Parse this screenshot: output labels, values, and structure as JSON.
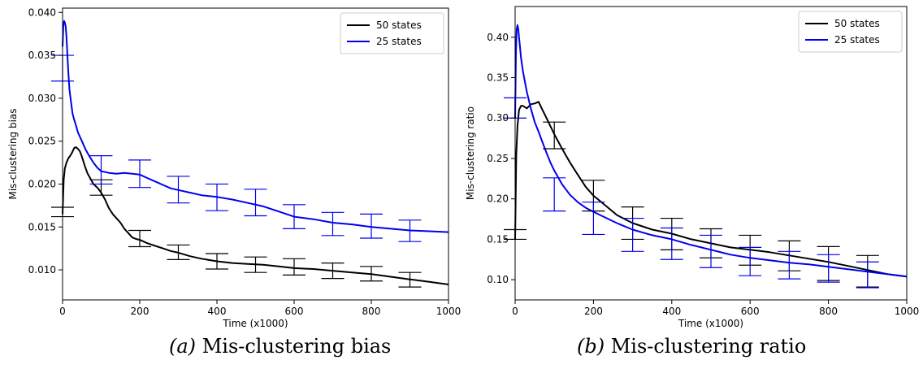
{
  "chart_data": [
    {
      "type": "line",
      "caption_label": "(a)",
      "caption_text": "Mis-clustering bias",
      "xlabel": "Time (x1000)",
      "ylabel": "Mis-clustering bias",
      "xlim": [
        0,
        1000
      ],
      "ylim": [
        0.0065,
        0.0405
      ],
      "xticks": [
        0,
        200,
        400,
        600,
        800,
        1000
      ],
      "yticks": [
        0.01,
        0.015,
        0.02,
        0.025,
        0.03,
        0.035,
        0.04
      ],
      "ytick_labels": [
        "0.010",
        "0.015",
        "0.020",
        "0.025",
        "0.030",
        "0.035",
        "0.040"
      ],
      "grid": false,
      "legend_position": "top-right",
      "series": [
        {
          "name": "50 states",
          "color": "#000000",
          "x": [
            0,
            3,
            6,
            10,
            15,
            20,
            25,
            30,
            35,
            40,
            45,
            50,
            55,
            60,
            65,
            70,
            80,
            90,
            100,
            110,
            120,
            130,
            140,
            150,
            160,
            170,
            180,
            190,
            200,
            220,
            240,
            260,
            280,
            300,
            330,
            360,
            400,
            440,
            480,
            520,
            560,
            600,
            650,
            700,
            750,
            800,
            850,
            900,
            950,
            1000
          ],
          "y": [
            0.0165,
            0.0205,
            0.0218,
            0.0225,
            0.023,
            0.0233,
            0.0237,
            0.0242,
            0.0243,
            0.0241,
            0.0238,
            0.0232,
            0.0225,
            0.0218,
            0.0212,
            0.0208,
            0.02,
            0.0196,
            0.019,
            0.0182,
            0.0172,
            0.0165,
            0.016,
            0.0155,
            0.0148,
            0.0143,
            0.0138,
            0.0136,
            0.0135,
            0.0131,
            0.0128,
            0.0125,
            0.0122,
            0.012,
            0.0116,
            0.0113,
            0.011,
            0.0108,
            0.0107,
            0.0106,
            0.0104,
            0.0102,
            0.0101,
            0.0099,
            0.0097,
            0.0095,
            0.0092,
            0.0089,
            0.0086,
            0.0083
          ]
        },
        {
          "name": "25 states",
          "color": "#0000ee",
          "x": [
            0,
            2,
            4,
            6,
            8,
            10,
            12,
            15,
            18,
            22,
            26,
            30,
            35,
            40,
            50,
            60,
            70,
            80,
            90,
            100,
            120,
            140,
            160,
            180,
            200,
            220,
            240,
            260,
            280,
            300,
            330,
            360,
            400,
            440,
            480,
            520,
            560,
            600,
            650,
            700,
            750,
            800,
            850,
            900,
            950,
            1000
          ],
          "y": [
            0.036,
            0.0385,
            0.039,
            0.0388,
            0.0384,
            0.0372,
            0.0355,
            0.033,
            0.031,
            0.0295,
            0.0282,
            0.0275,
            0.0268,
            0.026,
            0.025,
            0.024,
            0.0232,
            0.0225,
            0.0219,
            0.0215,
            0.0213,
            0.0212,
            0.0213,
            0.0212,
            0.0211,
            0.0207,
            0.0203,
            0.0199,
            0.0195,
            0.0193,
            0.019,
            0.0187,
            0.0185,
            0.0182,
            0.0178,
            0.0174,
            0.0168,
            0.0162,
            0.0159,
            0.0155,
            0.0153,
            0.015,
            0.0148,
            0.0146,
            0.0145,
            0.0144
          ]
        }
      ],
      "error_bars": [
        {
          "series": "50 states",
          "color": "#000000",
          "points": [
            {
              "x": 0,
              "low": 0.0162,
              "high": 0.0173
            },
            {
              "x": 100,
              "low": 0.0187,
              "high": 0.0205
            },
            {
              "x": 200,
              "low": 0.0127,
              "high": 0.0146
            },
            {
              "x": 300,
              "low": 0.0112,
              "high": 0.0129
            },
            {
              "x": 400,
              "low": 0.0101,
              "high": 0.0119
            },
            {
              "x": 500,
              "low": 0.0097,
              "high": 0.0115
            },
            {
              "x": 600,
              "low": 0.0094,
              "high": 0.0113
            },
            {
              "x": 700,
              "low": 0.009,
              "high": 0.0108
            },
            {
              "x": 800,
              "low": 0.0087,
              "high": 0.0104
            },
            {
              "x": 900,
              "low": 0.008,
              "high": 0.0097
            }
          ]
        },
        {
          "series": "25 states",
          "color": "#0000ee",
          "points": [
            {
              "x": 0,
              "low": 0.032,
              "high": 0.035
            },
            {
              "x": 100,
              "low": 0.02,
              "high": 0.0233
            },
            {
              "x": 200,
              "low": 0.0196,
              "high": 0.0228
            },
            {
              "x": 300,
              "low": 0.0178,
              "high": 0.0209
            },
            {
              "x": 400,
              "low": 0.0169,
              "high": 0.02
            },
            {
              "x": 500,
              "low": 0.0163,
              "high": 0.0194
            },
            {
              "x": 600,
              "low": 0.0148,
              "high": 0.0176
            },
            {
              "x": 700,
              "low": 0.014,
              "high": 0.0167
            },
            {
              "x": 800,
              "low": 0.0137,
              "high": 0.0165
            },
            {
              "x": 900,
              "low": 0.0133,
              "high": 0.0158
            }
          ]
        }
      ]
    },
    {
      "type": "line",
      "caption_label": "(b)",
      "caption_text": "Mis-clustering ratio",
      "xlabel": "Time (x1000)",
      "ylabel": "Mis-clustering ratio",
      "xlim": [
        0,
        1000
      ],
      "ylim": [
        0.075,
        0.438
      ],
      "xticks": [
        0,
        200,
        400,
        600,
        800,
        1000
      ],
      "yticks": [
        0.1,
        0.15,
        0.2,
        0.25,
        0.3,
        0.35,
        0.4
      ],
      "ytick_labels": [
        "0.10",
        "0.15",
        "0.20",
        "0.25",
        "0.30",
        "0.35",
        "0.40"
      ],
      "grid": false,
      "legend_position": "top-right",
      "series": [
        {
          "name": "50 states",
          "color": "#000000",
          "x": [
            0,
            3,
            6,
            10,
            15,
            20,
            30,
            40,
            50,
            60,
            70,
            80,
            90,
            100,
            120,
            140,
            160,
            180,
            200,
            230,
            260,
            300,
            350,
            400,
            450,
            500,
            550,
            600,
            650,
            700,
            750,
            800,
            850,
            900,
            950,
            1000
          ],
          "y": [
            0.15,
            0.255,
            0.29,
            0.31,
            0.315,
            0.315,
            0.312,
            0.317,
            0.318,
            0.32,
            0.31,
            0.3,
            0.29,
            0.28,
            0.262,
            0.245,
            0.23,
            0.215,
            0.204,
            0.192,
            0.18,
            0.17,
            0.162,
            0.157,
            0.15,
            0.145,
            0.14,
            0.137,
            0.134,
            0.13,
            0.126,
            0.122,
            0.117,
            0.112,
            0.107,
            0.104
          ]
        },
        {
          "name": "25 states",
          "color": "#0000ee",
          "x": [
            0,
            2,
            4,
            6,
            8,
            10,
            12,
            15,
            20,
            25,
            30,
            40,
            50,
            60,
            70,
            80,
            90,
            100,
            120,
            140,
            160,
            180,
            200,
            230,
            260,
            300,
            350,
            400,
            450,
            500,
            550,
            600,
            650,
            700,
            750,
            800,
            850,
            900,
            950,
            1000
          ],
          "y": [
            0.3,
            0.38,
            0.41,
            0.415,
            0.41,
            0.4,
            0.39,
            0.375,
            0.358,
            0.345,
            0.332,
            0.312,
            0.295,
            0.283,
            0.27,
            0.257,
            0.245,
            0.235,
            0.218,
            0.205,
            0.196,
            0.189,
            0.184,
            0.177,
            0.17,
            0.162,
            0.155,
            0.15,
            0.143,
            0.137,
            0.131,
            0.127,
            0.124,
            0.121,
            0.119,
            0.116,
            0.113,
            0.11,
            0.107,
            0.104
          ]
        }
      ],
      "error_bars": [
        {
          "series": "50 states",
          "color": "#000000",
          "points": [
            {
              "x": 0,
              "low": 0.15,
              "high": 0.162
            },
            {
              "x": 100,
              "low": 0.262,
              "high": 0.295
            },
            {
              "x": 200,
              "low": 0.185,
              "high": 0.223
            },
            {
              "x": 300,
              "low": 0.15,
              "high": 0.19
            },
            {
              "x": 400,
              "low": 0.137,
              "high": 0.176
            },
            {
              "x": 500,
              "low": 0.127,
              "high": 0.163
            },
            {
              "x": 600,
              "low": 0.118,
              "high": 0.155
            },
            {
              "x": 700,
              "low": 0.111,
              "high": 0.148
            },
            {
              "x": 800,
              "low": 0.099,
              "high": 0.141
            },
            {
              "x": 900,
              "low": 0.091,
              "high": 0.13
            }
          ]
        },
        {
          "series": "25 states",
          "color": "#0000ee",
          "points": [
            {
              "x": 0,
              "low": 0.3,
              "high": 0.325
            },
            {
              "x": 100,
              "low": 0.185,
              "high": 0.226
            },
            {
              "x": 200,
              "low": 0.156,
              "high": 0.196
            },
            {
              "x": 300,
              "low": 0.135,
              "high": 0.176
            },
            {
              "x": 400,
              "low": 0.125,
              "high": 0.164
            },
            {
              "x": 500,
              "low": 0.115,
              "high": 0.155
            },
            {
              "x": 600,
              "low": 0.105,
              "high": 0.14
            },
            {
              "x": 700,
              "low": 0.101,
              "high": 0.135
            },
            {
              "x": 800,
              "low": 0.097,
              "high": 0.131
            },
            {
              "x": 900,
              "low": 0.09,
              "high": 0.122
            }
          ]
        }
      ]
    }
  ]
}
